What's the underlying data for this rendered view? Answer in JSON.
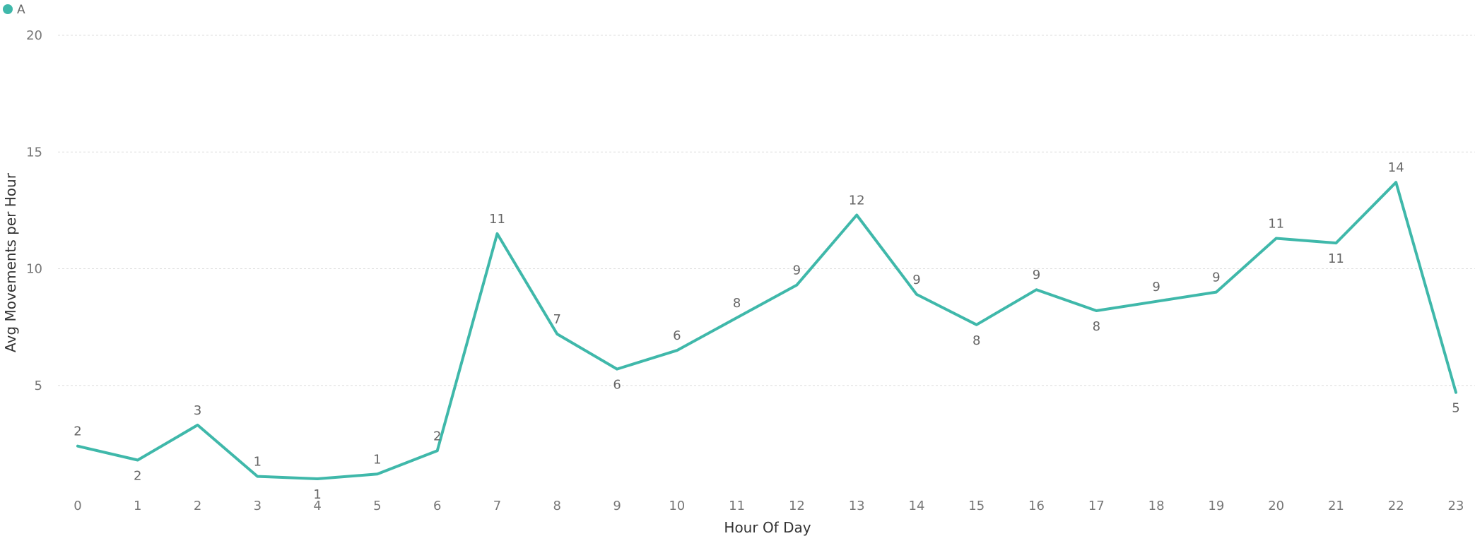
{
  "chart_data": {
    "type": "line",
    "title": "",
    "xlabel": "Hour Of Day",
    "ylabel": "Avg Movements per Hour",
    "ylim": [
      0,
      20
    ],
    "yticks": [
      5,
      10,
      15,
      20
    ],
    "grid": true,
    "legend_position": "top-left",
    "categories": [
      "0",
      "1",
      "2",
      "3",
      "4",
      "5",
      "6",
      "7",
      "8",
      "9",
      "10",
      "11",
      "12",
      "13",
      "14",
      "15",
      "16",
      "17",
      "18",
      "19",
      "20",
      "21",
      "22",
      "23"
    ],
    "series": [
      {
        "name": "A",
        "color": "#3fb8aa",
        "values": [
          2.4,
          1.8,
          3.3,
          1.1,
          1.0,
          1.2,
          2.2,
          11.5,
          7.2,
          5.7,
          6.5,
          7.9,
          9.3,
          12.3,
          8.9,
          7.6,
          9.1,
          8.2,
          8.6,
          9.0,
          11.3,
          11.1,
          13.7,
          4.7
        ],
        "labels": [
          "2",
          "2",
          "3",
          "1",
          "1",
          "1",
          "2",
          "11",
          "7",
          "6",
          "6",
          "8",
          "9",
          "12",
          "9",
          "8",
          "9",
          "8",
          "9",
          "9",
          "11",
          "11",
          "14",
          "5"
        ]
      }
    ]
  }
}
